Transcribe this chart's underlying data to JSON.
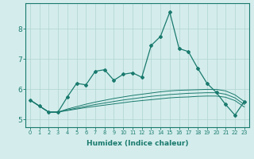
{
  "xlabel": "Humidex (Indice chaleur)",
  "bg_color": "#d4edec",
  "line_color": "#1a7a6e",
  "grid_color": "#b0d4d0",
  "x_data": [
    0,
    1,
    2,
    3,
    4,
    5,
    6,
    7,
    8,
    9,
    10,
    11,
    12,
    13,
    14,
    15,
    16,
    17,
    18,
    19,
    20,
    21,
    22,
    23
  ],
  "main_line": [
    5.65,
    5.45,
    5.25,
    5.25,
    5.75,
    6.2,
    6.15,
    6.6,
    6.65,
    6.3,
    6.5,
    6.55,
    6.4,
    7.45,
    7.75,
    8.55,
    7.35,
    7.25,
    6.7,
    6.2,
    5.9,
    5.5,
    5.15,
    5.6
  ],
  "line2": [
    5.65,
    5.45,
    5.25,
    5.25,
    5.35,
    5.43,
    5.51,
    5.58,
    5.64,
    5.7,
    5.75,
    5.8,
    5.84,
    5.88,
    5.92,
    5.95,
    5.97,
    5.98,
    5.99,
    6.0,
    6.0,
    5.95,
    5.82,
    5.6
  ],
  "line3": [
    5.65,
    5.45,
    5.25,
    5.25,
    5.32,
    5.38,
    5.44,
    5.5,
    5.55,
    5.6,
    5.65,
    5.69,
    5.73,
    5.77,
    5.8,
    5.83,
    5.85,
    5.87,
    5.88,
    5.89,
    5.89,
    5.84,
    5.72,
    5.5
  ],
  "line4": [
    5.65,
    5.45,
    5.25,
    5.25,
    5.3,
    5.35,
    5.4,
    5.44,
    5.48,
    5.52,
    5.56,
    5.6,
    5.63,
    5.66,
    5.69,
    5.72,
    5.74,
    5.75,
    5.77,
    5.78,
    5.78,
    5.74,
    5.63,
    5.42
  ],
  "ylim": [
    4.75,
    8.85
  ],
  "yticks": [
    5,
    6,
    7,
    8
  ],
  "xticks": [
    0,
    1,
    2,
    3,
    4,
    5,
    6,
    7,
    8,
    9,
    10,
    11,
    12,
    13,
    14,
    15,
    16,
    17,
    18,
    19,
    20,
    21,
    22,
    23
  ]
}
